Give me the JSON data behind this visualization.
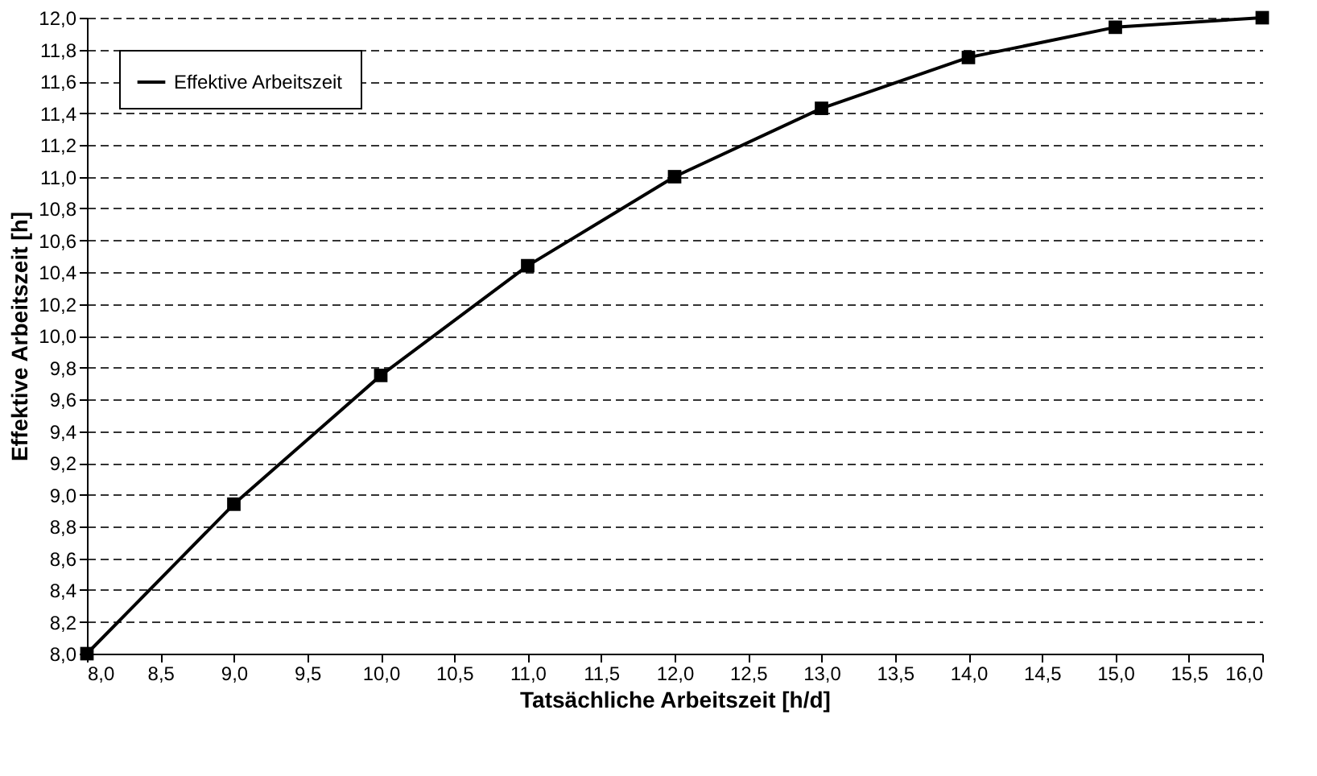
{
  "chart_data": {
    "type": "line",
    "xlabel": "Tatsächliche Arbeitszeit [h/d]",
    "ylabel": "Effektive Arbeitszeit [h]",
    "x": [
      8.0,
      9.0,
      10.0,
      11.0,
      12.0,
      13.0,
      14.0,
      15.0,
      16.0
    ],
    "series": [
      {
        "name": "Effektive Arbeitszeit",
        "color": "#000000",
        "values": [
          8.0,
          8.94,
          9.75,
          10.44,
          11.0,
          11.43,
          11.75,
          11.94,
          12.0
        ]
      }
    ],
    "xlim": [
      8.0,
      16.0
    ],
    "xticks": [
      {
        "value": 8.0,
        "label": "8,0"
      },
      {
        "value": 8.5,
        "label": "8,5"
      },
      {
        "value": 9.0,
        "label": "9,0"
      },
      {
        "value": 9.5,
        "label": "9,5"
      },
      {
        "value": 10.0,
        "label": "10,0"
      },
      {
        "value": 10.5,
        "label": "10,5"
      },
      {
        "value": 11.0,
        "label": "11,0"
      },
      {
        "value": 11.5,
        "label": "11,5"
      },
      {
        "value": 12.0,
        "label": "12,0"
      },
      {
        "value": 12.5,
        "label": "12,5"
      },
      {
        "value": 13.0,
        "label": "13,0"
      },
      {
        "value": 13.5,
        "label": "13,5"
      },
      {
        "value": 14.0,
        "label": "14,0"
      },
      {
        "value": 14.5,
        "label": "14,5"
      },
      {
        "value": 15.0,
        "label": "15,0"
      },
      {
        "value": 15.5,
        "label": "15,5"
      },
      {
        "value": 16.0,
        "label": "16,0"
      }
    ],
    "ylim": [
      8.0,
      12.0
    ],
    "yticks": [
      {
        "value": 8.0,
        "label": "8,0"
      },
      {
        "value": 8.2,
        "label": "8,2"
      },
      {
        "value": 8.4,
        "label": "8,4"
      },
      {
        "value": 8.6,
        "label": "8,6"
      },
      {
        "value": 8.8,
        "label": "8,8"
      },
      {
        "value": 9.0,
        "label": "9,0"
      },
      {
        "value": 9.2,
        "label": "9,2"
      },
      {
        "value": 9.4,
        "label": "9,4"
      },
      {
        "value": 9.6,
        "label": "9,6"
      },
      {
        "value": 9.8,
        "label": "9,8"
      },
      {
        "value": 10.0,
        "label": "10,0"
      },
      {
        "value": 10.2,
        "label": "10,2"
      },
      {
        "value": 10.4,
        "label": "10,4"
      },
      {
        "value": 10.6,
        "label": "10,6"
      },
      {
        "value": 10.8,
        "label": "10,8"
      },
      {
        "value": 11.0,
        "label": "11,0"
      },
      {
        "value": 11.2,
        "label": "11,2"
      },
      {
        "value": 11.4,
        "label": "11,4"
      },
      {
        "value": 11.6,
        "label": "11,6"
      },
      {
        "value": 11.8,
        "label": "11,8"
      },
      {
        "value": 12.0,
        "label": "12,0"
      }
    ],
    "grid": "y",
    "legend": "top left",
    "marker": "square",
    "line_style": "solid"
  }
}
